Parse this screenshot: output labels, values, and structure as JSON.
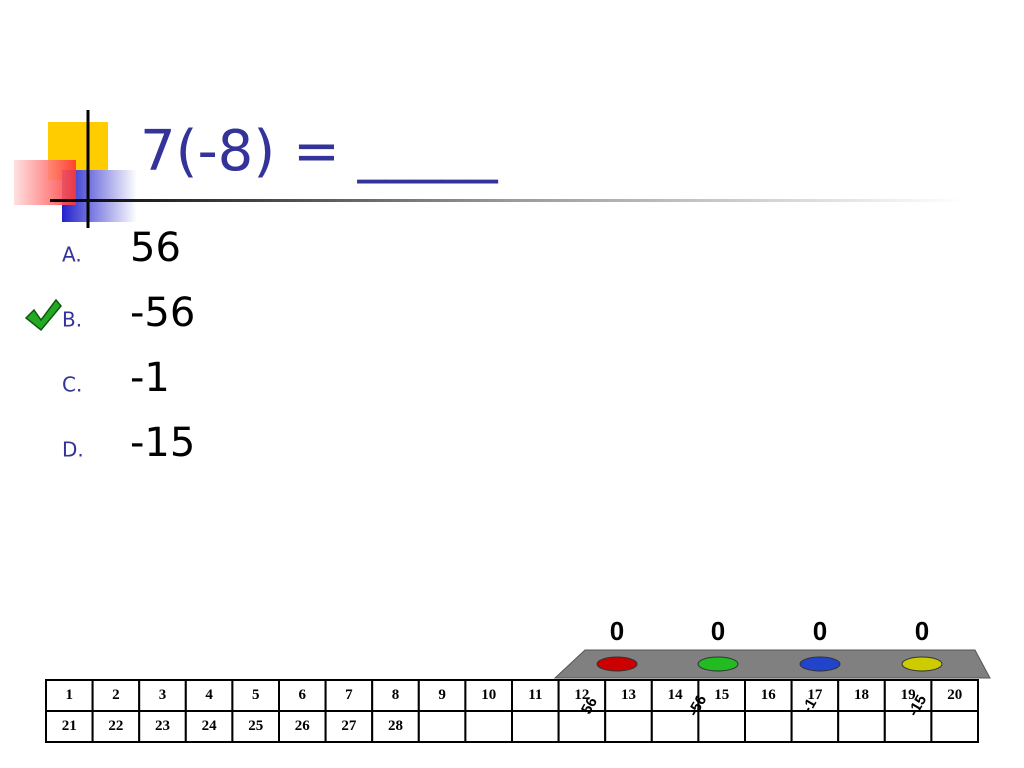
{
  "title": "7(-8) = _____",
  "options": [
    {
      "letter": "A.",
      "text": "56"
    },
    {
      "letter": "B.",
      "text": "-56"
    },
    {
      "letter": "C.",
      "text": "-1"
    },
    {
      "letter": "D.",
      "text": "-15"
    }
  ],
  "voting": [
    {
      "count": "0",
      "label": "56"
    },
    {
      "count": "0",
      "label": "-56"
    },
    {
      "count": "0",
      "label": "-1"
    },
    {
      "count": "0",
      "label": "-15"
    }
  ],
  "grid": [
    [
      "1",
      "2",
      "3",
      "4",
      "5",
      "6",
      "7",
      "8",
      "9",
      "10",
      "11",
      "12",
      "13",
      "14",
      "15",
      "16",
      "17",
      "18",
      "19",
      "20"
    ],
    [
      "21",
      "22",
      "23",
      "24",
      "25",
      "26",
      "27",
      "28"
    ]
  ]
}
